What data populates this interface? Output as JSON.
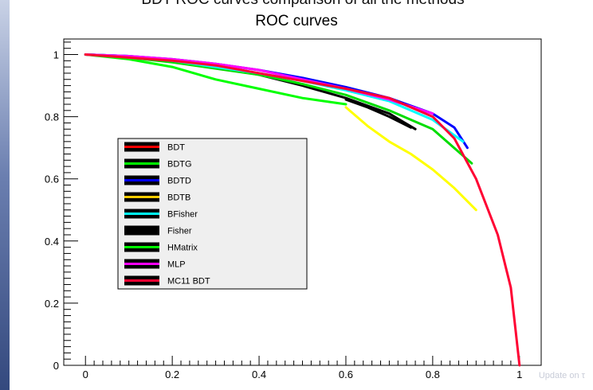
{
  "header": {
    "cut_text": "BDT ROC curves comparison of all the methods"
  },
  "footer": {
    "text": "Update on τ"
  },
  "chart_data": {
    "type": "line",
    "title": "ROC curves",
    "xlabel": "",
    "ylabel": "",
    "xlim": [
      -0.05,
      1.05
    ],
    "ylim": [
      0,
      1.05
    ],
    "xticks": [
      0,
      0.2,
      0.4,
      0.6,
      0.8,
      1
    ],
    "xtick_labels": [
      "0",
      "0.2",
      "0.4",
      "0.6",
      "0.8",
      "1"
    ],
    "yticks": [
      0,
      0.2,
      0.4,
      0.6,
      0.8,
      1
    ],
    "ytick_labels": [
      "0",
      "0.2",
      "0.4",
      "0.6",
      "0.8",
      "1"
    ],
    "grid": false,
    "legend": {
      "placement": "center-left"
    },
    "series": [
      {
        "name": "BDT",
        "color": "#000000",
        "legend_color": "#ff0000",
        "x": [
          0,
          0.1,
          0.2,
          0.3,
          0.4,
          0.5,
          0.6,
          0.7,
          0.76
        ],
        "y": [
          1,
          0.995,
          0.98,
          0.96,
          0.935,
          0.9,
          0.86,
          0.81,
          0.76
        ]
      },
      {
        "name": "BDTG",
        "color": "#00dd00",
        "legend_color": "#00ff00",
        "x": [
          0,
          0.1,
          0.2,
          0.3,
          0.4,
          0.5,
          0.6,
          0.7,
          0.8,
          0.89
        ],
        "y": [
          1,
          0.99,
          0.975,
          0.955,
          0.935,
          0.905,
          0.87,
          0.82,
          0.76,
          0.65
        ]
      },
      {
        "name": "BDTD",
        "color": "#0000ff",
        "legend_color": "#0000ff",
        "x": [
          0,
          0.1,
          0.2,
          0.3,
          0.4,
          0.5,
          0.6,
          0.7,
          0.8,
          0.85,
          0.88
        ],
        "y": [
          1,
          0.995,
          0.985,
          0.97,
          0.95,
          0.925,
          0.895,
          0.86,
          0.81,
          0.765,
          0.7
        ]
      },
      {
        "name": "BDTB",
        "color": "#ffff00",
        "legend_color": "#ffcc00",
        "x": [
          0.6,
          0.65,
          0.7,
          0.75,
          0.8,
          0.85,
          0.9
        ],
        "y": [
          0.83,
          0.77,
          0.72,
          0.68,
          0.63,
          0.57,
          0.5
        ]
      },
      {
        "name": "BFisher",
        "color": "#00ffff",
        "legend_color": "#00ffff",
        "x": [
          0,
          0.1,
          0.2,
          0.3,
          0.4,
          0.5,
          0.6,
          0.7,
          0.8,
          0.87
        ],
        "y": [
          1,
          0.995,
          0.98,
          0.96,
          0.94,
          0.915,
          0.885,
          0.85,
          0.79,
          0.72
        ]
      },
      {
        "name": "Fisher",
        "color": "#000000",
        "legend_color": "#000000",
        "x": [
          0.6,
          0.65,
          0.7,
          0.75
        ],
        "y": [
          0.855,
          0.83,
          0.8,
          0.765
        ]
      },
      {
        "name": "HMatrix",
        "color": "#00ff00",
        "legend_color": "#00ff00",
        "x": [
          0,
          0.1,
          0.2,
          0.3,
          0.4,
          0.5,
          0.6
        ],
        "y": [
          1,
          0.985,
          0.96,
          0.92,
          0.89,
          0.86,
          0.84
        ]
      },
      {
        "name": "MLP",
        "color": "#ff00ff",
        "legend_color": "#ff00ff",
        "x": [
          0,
          0.1,
          0.2,
          0.3,
          0.4,
          0.5,
          0.6,
          0.7,
          0.8
        ],
        "y": [
          1,
          0.995,
          0.985,
          0.97,
          0.95,
          0.92,
          0.89,
          0.855,
          0.81
        ]
      },
      {
        "name": "MC11 BDT",
        "color": "#ff0033",
        "legend_color": "#ff0033",
        "x": [
          0,
          0.1,
          0.2,
          0.3,
          0.4,
          0.5,
          0.6,
          0.7,
          0.8,
          0.85,
          0.9,
          0.95,
          0.98,
          1
        ],
        "y": [
          1,
          0.99,
          0.98,
          0.965,
          0.94,
          0.915,
          0.89,
          0.86,
          0.8,
          0.73,
          0.6,
          0.42,
          0.25,
          0
        ]
      }
    ]
  }
}
